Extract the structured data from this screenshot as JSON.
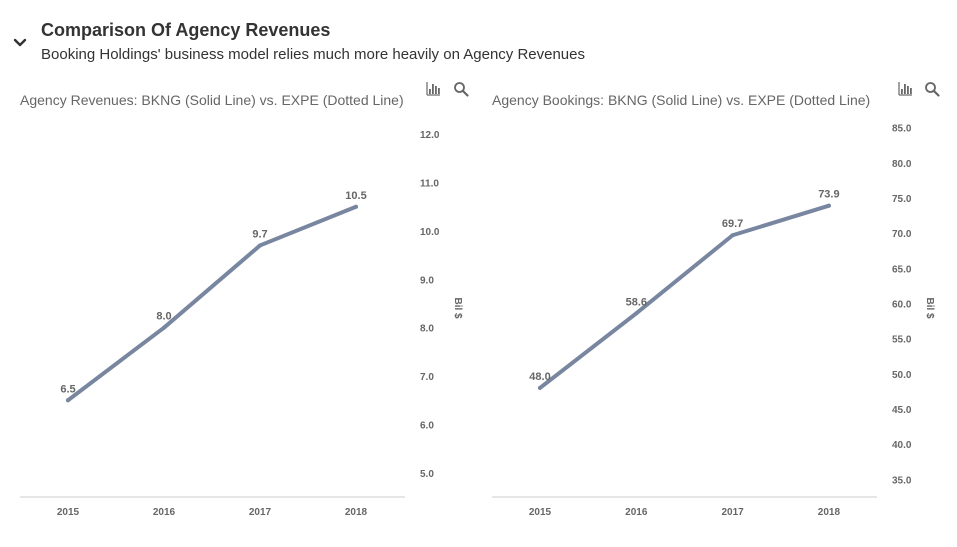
{
  "header": {
    "title": "Comparison Of Agency Revenues",
    "subtitle": "Booking Holdings' business model relies much more heavily on Agency Revenues",
    "toggle_icon": "chevron-down-icon"
  },
  "toolbar_icons": [
    "bar-chart-icon",
    "search-icon"
  ],
  "colors": {
    "series_line": "#7886a0",
    "text": "#666666",
    "axis": "#cccccc"
  },
  "chart_data": [
    {
      "type": "line",
      "title": "Agency Revenues: BKNG (Solid Line) vs. EXPE (Dotted Line)",
      "categories": [
        "2015",
        "2016",
        "2017",
        "2018"
      ],
      "series": [
        {
          "values": [
            6.5,
            8.0,
            9.7,
            10.5
          ],
          "style": "solid"
        }
      ],
      "data_labels": [
        "6.5",
        "8.0",
        "9.7",
        "10.5"
      ],
      "ylabel": "Bil $",
      "y_axis_position": "right",
      "ylim": [
        4.5,
        12.5
      ],
      "yticks": [
        5.0,
        6.0,
        7.0,
        8.0,
        9.0,
        10.0,
        11.0,
        12.0
      ],
      "ytick_labels": [
        "5.0",
        "6.0",
        "7.0",
        "8.0",
        "9.0",
        "10.0",
        "11.0",
        "12.0"
      ],
      "grid": false,
      "legend": "none"
    },
    {
      "type": "line",
      "title": "Agency Bookings: BKNG (Solid Line) vs. EXPE (Dotted Line)",
      "categories": [
        "2015",
        "2016",
        "2017",
        "2018"
      ],
      "series": [
        {
          "values": [
            48.0,
            58.6,
            69.7,
            73.9
          ],
          "style": "solid"
        }
      ],
      "data_labels": [
        "48.0",
        "58.6",
        "69.7",
        "73.9"
      ],
      "ylabel": "Bil $",
      "y_axis_position": "right",
      "ylim": [
        32.5,
        87.5
      ],
      "yticks": [
        35,
        40,
        45,
        50,
        55,
        60,
        65,
        70,
        75,
        80,
        85
      ],
      "ytick_labels": [
        "35.0",
        "40.0",
        "45.0",
        "50.0",
        "55.0",
        "60.0",
        "65.0",
        "70.0",
        "75.0",
        "80.0",
        "85.0"
      ],
      "grid": false,
      "legend": "none"
    }
  ]
}
